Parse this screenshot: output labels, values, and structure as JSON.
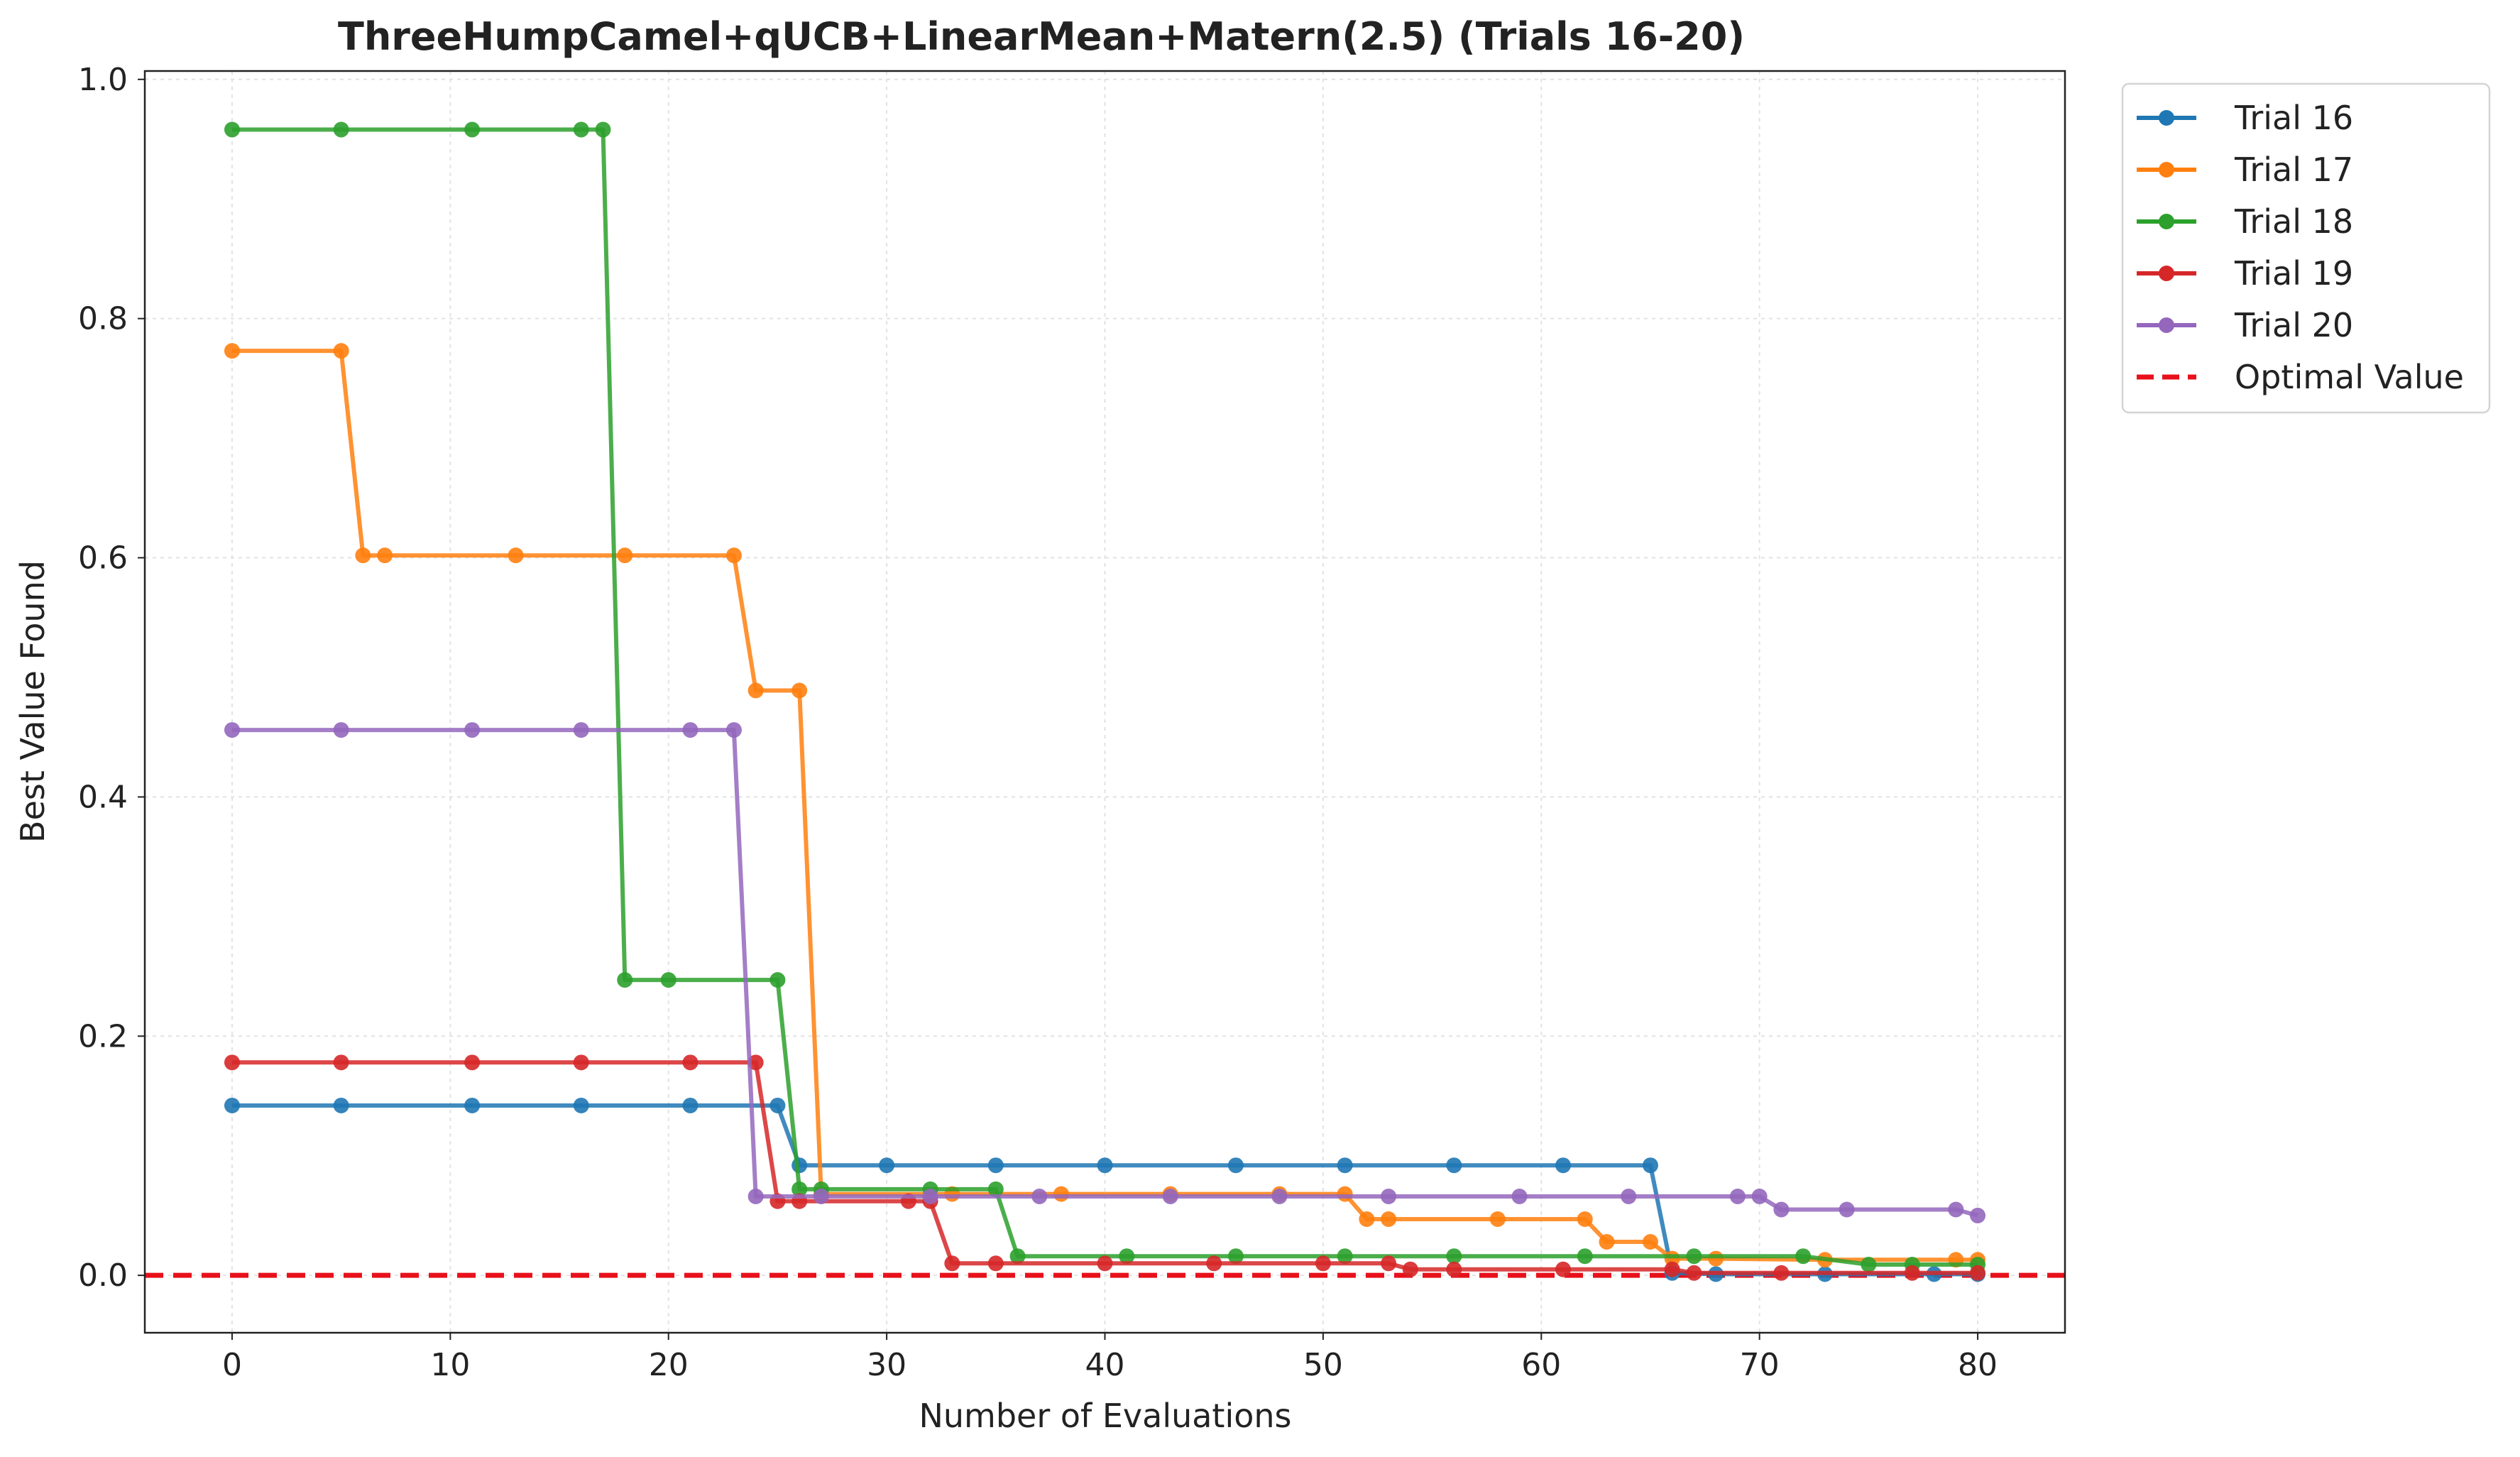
{
  "chart_data": {
    "type": "line",
    "title": "ThreeHumpCamel+qUCB+LinearMean+Matern(2.5) (Trials 16-20)",
    "xlabel": "Number of Evaluations",
    "ylabel": "Best Value Found",
    "xlim": [
      -4,
      84
    ],
    "ylim": [
      -0.048,
      1.007
    ],
    "xticks": [
      0,
      10,
      20,
      30,
      40,
      50,
      60,
      70,
      80
    ],
    "yticks": [
      0.0,
      0.2,
      0.4,
      0.6,
      0.8,
      1.0
    ],
    "xtick_labels": [
      "0",
      "10",
      "20",
      "30",
      "40",
      "50",
      "60",
      "70",
      "80"
    ],
    "ytick_labels": [
      "0.0",
      "0.2",
      "0.4",
      "0.6",
      "0.8",
      "1.0"
    ],
    "grid": true,
    "legend_position": "outside-top-right",
    "series": [
      {
        "name": "Trial 16",
        "color": "#1f77b4",
        "x": [
          0,
          5,
          11,
          16,
          21,
          25,
          26,
          30,
          35,
          40,
          46,
          51,
          56,
          61,
          65,
          66,
          68,
          73,
          78,
          80
        ],
        "y": [
          0.142,
          0.142,
          0.142,
          0.142,
          0.142,
          0.142,
          0.092,
          0.092,
          0.092,
          0.092,
          0.092,
          0.092,
          0.092,
          0.092,
          0.092,
          0.002,
          0.001,
          0.001,
          0.001,
          0.001
        ]
      },
      {
        "name": "Trial 17",
        "color": "#ff7f0e",
        "x": [
          0,
          5,
          6,
          7,
          13,
          18,
          23,
          24,
          26,
          27,
          33,
          38,
          43,
          48,
          51,
          52,
          53,
          58,
          62,
          63,
          65,
          66,
          68,
          73,
          79,
          80
        ],
        "y": [
          0.773,
          0.773,
          0.602,
          0.602,
          0.602,
          0.602,
          0.602,
          0.489,
          0.489,
          0.068,
          0.068,
          0.068,
          0.068,
          0.068,
          0.068,
          0.047,
          0.047,
          0.047,
          0.047,
          0.028,
          0.028,
          0.014,
          0.014,
          0.013,
          0.013,
          0.013
        ]
      },
      {
        "name": "Trial 18",
        "color": "#2ca02c",
        "x": [
          0,
          5,
          11,
          16,
          17,
          18,
          20,
          25,
          26,
          27,
          32,
          35,
          36,
          41,
          46,
          51,
          56,
          62,
          67,
          72,
          75,
          77,
          80
        ],
        "y": [
          0.958,
          0.958,
          0.958,
          0.958,
          0.958,
          0.247,
          0.247,
          0.247,
          0.072,
          0.072,
          0.072,
          0.072,
          0.016,
          0.016,
          0.016,
          0.016,
          0.016,
          0.016,
          0.016,
          0.016,
          0.009,
          0.009,
          0.009
        ]
      },
      {
        "name": "Trial 19",
        "color": "#d62728",
        "x": [
          0,
          5,
          11,
          16,
          21,
          24,
          25,
          26,
          31,
          32,
          33,
          35,
          40,
          45,
          50,
          53,
          54,
          56,
          61,
          66,
          67,
          71,
          77,
          80
        ],
        "y": [
          0.178,
          0.178,
          0.178,
          0.178,
          0.178,
          0.178,
          0.062,
          0.062,
          0.062,
          0.062,
          0.01,
          0.01,
          0.01,
          0.01,
          0.01,
          0.01,
          0.005,
          0.005,
          0.005,
          0.005,
          0.002,
          0.002,
          0.002,
          0.002
        ]
      },
      {
        "name": "Trial 20",
        "color": "#9467bd",
        "x": [
          0,
          5,
          11,
          16,
          21,
          23,
          24,
          27,
          32,
          37,
          43,
          48,
          53,
          59,
          64,
          69,
          70,
          71,
          74,
          79,
          80
        ],
        "y": [
          0.456,
          0.456,
          0.456,
          0.456,
          0.456,
          0.456,
          0.066,
          0.066,
          0.066,
          0.066,
          0.066,
          0.066,
          0.066,
          0.066,
          0.066,
          0.066,
          0.066,
          0.055,
          0.055,
          0.055,
          0.05
        ]
      }
    ],
    "reference_lines": [
      {
        "name": "Optimal Value",
        "y": 0.0,
        "color": "#e8111b",
        "style": "dashed"
      }
    ]
  }
}
